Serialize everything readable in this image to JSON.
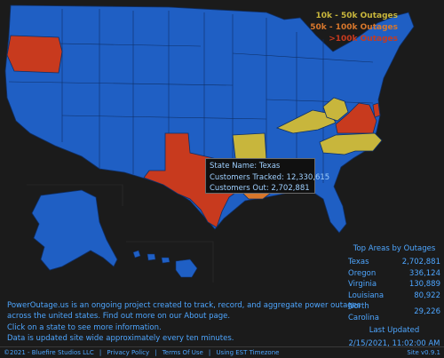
{
  "colors": {
    "background": "#1b1b1b",
    "state_default": "#1f5fc4",
    "state_border": "#0f2f66",
    "tier_1": "#c8b63c",
    "tier_2": "#d8772c",
    "tier_3": "#c83a1e",
    "text_blue": "#4ea6ff"
  },
  "legend": [
    {
      "label": "10k - 50k Outages",
      "color": "#c8b63c"
    },
    {
      "label": "50k - 100k Outages",
      "color": "#d8772c"
    },
    {
      "label": ">100k Outages",
      "color": "#c83a1e"
    }
  ],
  "map": {
    "highlighted_states": {
      "Texas": "tier_3",
      "Oregon": "tier_3",
      "Virginia": "tier_3",
      "Louisiana": "tier_2",
      "North Carolina": "tier_1",
      "Kentucky": "tier_1",
      "West Virginia": "tier_1",
      "Arkansas": "tier_1",
      "Delaware": "tier_3"
    }
  },
  "tooltip": {
    "state_line": "State Name: Texas",
    "tracked_line": "Customers Tracked: 12,330,615",
    "out_line": "Customers Out: 2,702,881"
  },
  "top_areas": {
    "title": "Top Areas by Outages",
    "rows": [
      {
        "name": "Texas",
        "value": "2,702,881"
      },
      {
        "name": "Oregon",
        "value": "336,124"
      },
      {
        "name": "Virginia",
        "value": "130,889"
      },
      {
        "name": "Louisiana",
        "value": "80,922"
      },
      {
        "name": "North Carolina",
        "value": "29,226"
      }
    ],
    "last_updated_label": "Last Updated",
    "last_updated_value": "2/15/2021, 11:02:00 AM"
  },
  "info": {
    "line1": "PowerOutage.us is an ongoing project created to track, record, and aggregate power outages",
    "line2": "across the united states. Find out more on our About page.",
    "line3": "Click on a state to see more information.",
    "line4": "Data is updated site wide approximately every ten minutes."
  },
  "footer": {
    "copyright": "©2021 - Bluefire Studios LLC",
    "privacy": "Privacy Policy",
    "terms": "Terms Of Use",
    "timezone": "Using EST Timezone",
    "version": "Site v0.9.1"
  }
}
